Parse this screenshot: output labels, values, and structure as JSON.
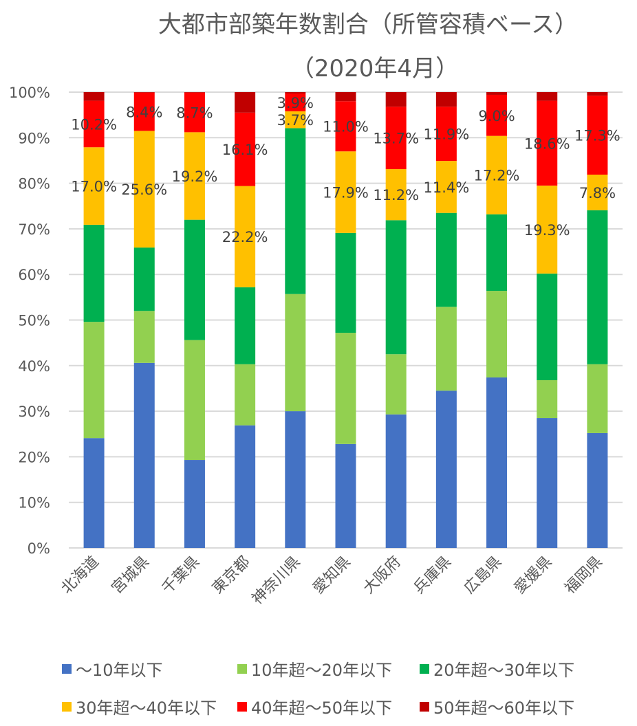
{
  "chart_data": {
    "type": "bar",
    "stacked": true,
    "title": "大都市部築年数割合（所管容積ベース）",
    "subtitle": "（2020年4月）",
    "xlabel": "",
    "ylabel": "",
    "ylim": [
      0,
      100
    ],
    "yticks": [
      "0%",
      "10%",
      "20%",
      "30%",
      "40%",
      "50%",
      "60%",
      "70%",
      "80%",
      "90%",
      "100%"
    ],
    "grid": true,
    "legend_position": "bottom",
    "categories": [
      "北海道",
      "宮城県",
      "千葉県",
      "東京都",
      "神奈川県",
      "愛知県",
      "大阪府",
      "兵庫県",
      "広島県",
      "愛媛県",
      "福岡県"
    ],
    "series": [
      {
        "name": "～10年以下",
        "color": "#4472C4",
        "values": [
          24.1,
          40.6,
          19.3,
          26.9,
          30.0,
          22.8,
          29.3,
          34.5,
          37.4,
          28.5,
          25.2
        ],
        "labels": [
          null,
          null,
          null,
          null,
          null,
          null,
          null,
          null,
          null,
          null,
          null
        ]
      },
      {
        "name": "10年超～20年以下",
        "color": "#92D050",
        "values": [
          25.5,
          11.4,
          26.3,
          13.4,
          25.7,
          24.4,
          13.2,
          18.4,
          19.0,
          8.3,
          15.1
        ],
        "labels": [
          null,
          null,
          null,
          null,
          null,
          null,
          null,
          null,
          null,
          null,
          null
        ]
      },
      {
        "name": "20年超～30年以下",
        "color": "#00B050",
        "values": [
          21.3,
          13.9,
          26.4,
          16.9,
          36.4,
          21.9,
          29.4,
          20.6,
          16.8,
          23.4,
          33.8
        ],
        "labels": [
          null,
          null,
          null,
          null,
          null,
          null,
          null,
          null,
          null,
          null,
          null
        ]
      },
      {
        "name": "30年超～40年以下",
        "color": "#FFC000",
        "values": [
          17.0,
          25.6,
          19.2,
          22.2,
          3.7,
          17.9,
          11.2,
          11.4,
          17.2,
          19.3,
          7.8
        ],
        "labels": [
          "17.0%",
          "25.6%",
          "19.2%",
          "22.2%",
          "3.7%",
          "17.9%",
          "11.2%",
          "11.4%",
          "17.2%",
          "19.3%",
          "7.8%"
        ]
      },
      {
        "name": "40年超～50年以下",
        "color": "#FF0000",
        "values": [
          10.2,
          8.4,
          8.7,
          16.1,
          3.9,
          11.0,
          13.7,
          11.9,
          9.0,
          18.6,
          17.3
        ],
        "labels": [
          "10.2%",
          "8.4%",
          "8.7%",
          "16.1%",
          "3.9%",
          "11.0%",
          "13.7%",
          "11.9%",
          "9.0%",
          "18.6%",
          "17.3%"
        ]
      },
      {
        "name": "50年超～60年以下",
        "color": "#C00000",
        "values": [
          1.9,
          0.1,
          0.1,
          4.5,
          0.3,
          2.0,
          3.2,
          3.2,
          0.6,
          1.9,
          0.8
        ],
        "labels": [
          null,
          null,
          null,
          null,
          null,
          null,
          null,
          null,
          null,
          null,
          null
        ]
      }
    ]
  }
}
